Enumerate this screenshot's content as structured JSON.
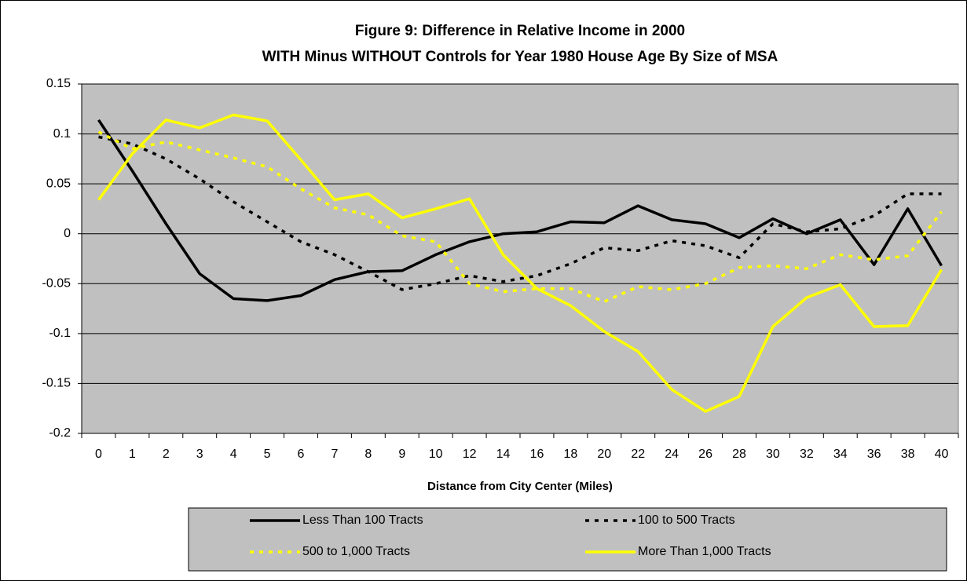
{
  "chart_data": {
    "type": "line",
    "title": "Figure 9: Difference in Relative Income in 2000",
    "subtitle": "WITH Minus WITHOUT Controls for Year 1980 House Age By Size of MSA",
    "x_label": "Distance from City Center (Miles)",
    "categories": [
      "0",
      "1",
      "2",
      "3",
      "4",
      "5",
      "6",
      "7",
      "8",
      "9",
      "10",
      "12",
      "14",
      "16",
      "18",
      "20",
      "22",
      "24",
      "26",
      "28",
      "30",
      "32",
      "34",
      "36",
      "38",
      "40"
    ],
    "ylim": [
      -0.2,
      0.15
    ],
    "yticks": [
      -0.2,
      -0.15,
      -0.1,
      -0.05,
      0,
      0.05,
      0.1,
      0.15
    ],
    "grid": true,
    "legend": "bottom",
    "background": "#c0c0c0",
    "series": [
      {
        "name": "Less Than 100 Tracts",
        "color": "#000000",
        "style": "solid",
        "values": [
          0.114,
          0.063,
          0.01,
          -0.04,
          -0.065,
          -0.067,
          -0.062,
          -0.046,
          -0.038,
          -0.037,
          -0.021,
          -0.008,
          0.0,
          0.002,
          0.012,
          0.011,
          0.028,
          0.014,
          0.01,
          -0.004,
          0.015,
          0.0,
          0.014,
          -0.031,
          0.025,
          -0.032
        ]
      },
      {
        "name": "100 to 500 Tracts",
        "color": "#000000",
        "style": "dashed",
        "values": [
          0.097,
          0.09,
          0.075,
          0.055,
          0.032,
          0.012,
          -0.008,
          -0.021,
          -0.038,
          -0.056,
          -0.05,
          -0.042,
          -0.048,
          -0.042,
          -0.03,
          -0.014,
          -0.017,
          -0.007,
          -0.012,
          -0.024,
          0.01,
          0.002,
          0.005,
          0.018,
          0.04,
          0.04
        ]
      },
      {
        "name": "500 to 1,000 Tracts",
        "color": "#ffff00",
        "style": "dashed",
        "values": [
          0.102,
          0.085,
          0.092,
          0.084,
          0.076,
          0.067,
          0.045,
          0.026,
          0.019,
          -0.002,
          -0.008,
          -0.05,
          -0.058,
          -0.055,
          -0.055,
          -0.068,
          -0.053,
          -0.056,
          -0.05,
          -0.034,
          -0.032,
          -0.035,
          -0.021,
          -0.026,
          -0.022,
          0.022
        ]
      },
      {
        "name": "More Than 1,000 Tracts",
        "color": "#ffff00",
        "style": "solid",
        "values": [
          0.034,
          0.08,
          0.114,
          0.106,
          0.119,
          0.113,
          0.074,
          0.034,
          0.04,
          0.016,
          0.025,
          0.035,
          -0.021,
          -0.055,
          -0.072,
          -0.098,
          -0.118,
          -0.156,
          -0.178,
          -0.163,
          -0.093,
          -0.064,
          -0.051,
          -0.093,
          -0.092,
          -0.036
        ]
      }
    ]
  }
}
